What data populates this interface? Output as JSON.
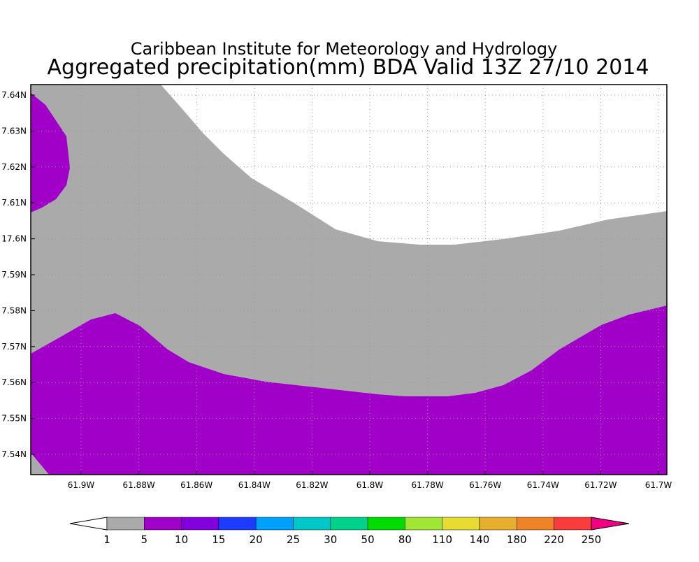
{
  "header": {
    "title": "Caribbean Institute for Meteorology and Hydrology",
    "subtitle": "Aggregated precipitation(mm) BDA Valid 13Z 27/10 2014"
  },
  "map": {
    "x_labels": [
      "61.9W",
      "61.88W",
      "61.86W",
      "61.84W",
      "61.82W",
      "61.8W",
      "61.78W",
      "61.76W",
      "61.74W",
      "61.72W",
      "61.7W"
    ],
    "y_labels": [
      "7.64N",
      "7.63N",
      "7.62N",
      "7.61N",
      "17.6N",
      "7.59N",
      "7.58N",
      "7.57N",
      "7.56N",
      "7.55N",
      "7.54N"
    ]
  },
  "colorbar": {
    "labels": [
      "1",
      "5",
      "10",
      "15",
      "20",
      "25",
      "30",
      "50",
      "80",
      "110",
      "140",
      "180",
      "220",
      "250"
    ],
    "colors": [
      "#ffffff",
      "#aaaaaa",
      "#a000c8",
      "#8200dc",
      "#1e3cff",
      "#00a0ff",
      "#00c8c8",
      "#00d28c",
      "#00dc00",
      "#a0e632",
      "#e6dc32",
      "#e6af2d",
      "#f08228",
      "#fa3c3c",
      "#f00082"
    ]
  }
}
